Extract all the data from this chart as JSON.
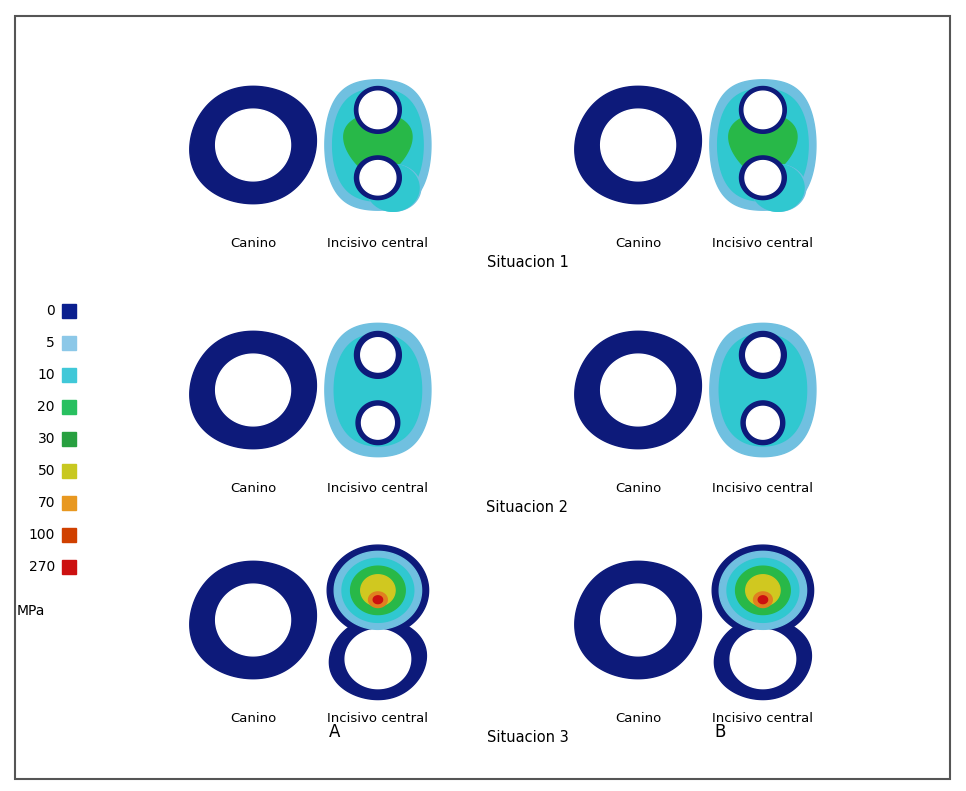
{
  "legend_values": [
    "0",
    "5",
    "10",
    "20",
    "30",
    "50",
    "70",
    "100",
    "270"
  ],
  "legend_colors": [
    "#0a1f8f",
    "#8cc8e8",
    "#40c8d8",
    "#28c060",
    "#28a040",
    "#c8c820",
    "#e89820",
    "#d04000",
    "#cc1010"
  ],
  "legend_unit": "MPa",
  "row_labels": [
    "Situacion 1",
    "Situacion 2",
    "Situacion 3"
  ],
  "group_labels": [
    "A",
    "B"
  ],
  "col_labels": [
    "Canino",
    "Incisivo central"
  ],
  "background": "#ffffff",
  "dark_blue": "#0d1a7a",
  "med_blue": "#1a50c0",
  "light_blue": "#70c0e0",
  "cyan": "#30c8d0",
  "green": "#28b848",
  "yellow_green": "#88c030",
  "yellow": "#d0d010",
  "orange": "#e08020",
  "red": "#cc1010"
}
